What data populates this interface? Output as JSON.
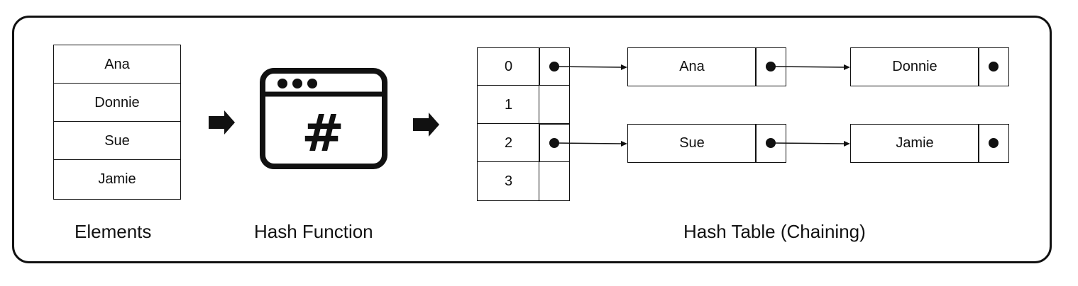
{
  "elements": {
    "caption": "Elements",
    "items": [
      "Ana",
      "Donnie",
      "Sue",
      "Jamie"
    ]
  },
  "hash_function": {
    "caption": "Hash Function",
    "symbol": "#",
    "icon": "hash-window-icon"
  },
  "hash_table": {
    "caption": "Hash Table (Chaining)",
    "indices": [
      "0",
      "1",
      "2",
      "3"
    ],
    "chains": {
      "row0": [
        "Ana",
        "Donnie"
      ],
      "row2": [
        "Sue",
        "Jamie"
      ]
    }
  },
  "colors": {
    "stroke": "#111111",
    "background": "#ffffff"
  }
}
